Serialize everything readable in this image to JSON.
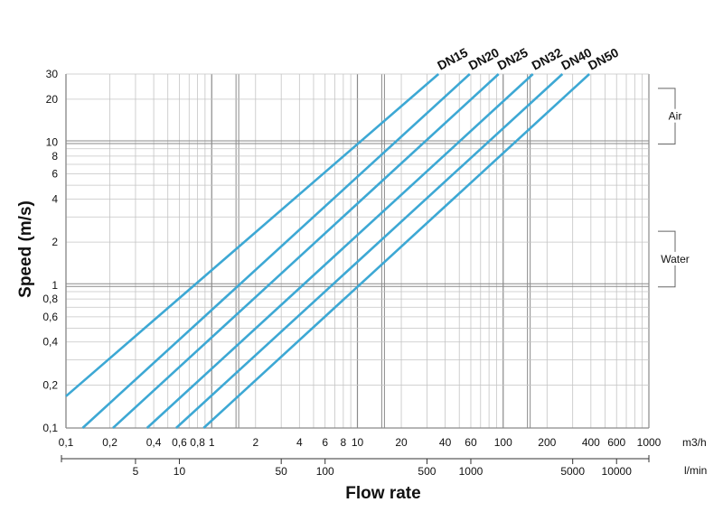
{
  "chart_data": {
    "type": "line",
    "title": "",
    "xlabel": "Flow rate",
    "ylabel": "Speed (m/s)",
    "x_scale": "log",
    "y_scale": "log",
    "grid": true,
    "xlim": [
      0.1,
      1000
    ],
    "ylim": [
      0.1,
      30
    ],
    "x_unit_primary": "m3/h",
    "x_unit_secondary": "l/min",
    "x_ticks_primary": [
      {
        "value": 0.1,
        "label": "0,1"
      },
      {
        "value": 0.2,
        "label": "0,2"
      },
      {
        "value": 0.4,
        "label": "0,4"
      },
      {
        "value": 0.6,
        "label": "0,6"
      },
      {
        "value": 0.8,
        "label": "0,8"
      },
      {
        "value": 1,
        "label": "1"
      },
      {
        "value": 2,
        "label": "2"
      },
      {
        "value": 4,
        "label": "4"
      },
      {
        "value": 6,
        "label": "6"
      },
      {
        "value": 8,
        "label": "8"
      },
      {
        "value": 10,
        "label": "10"
      },
      {
        "value": 20,
        "label": "20"
      },
      {
        "value": 40,
        "label": "40"
      },
      {
        "value": 60,
        "label": "60"
      },
      {
        "value": 100,
        "label": "100"
      },
      {
        "value": 200,
        "label": "200"
      },
      {
        "value": 400,
        "label": "400"
      },
      {
        "value": 600,
        "label": "600"
      },
      {
        "value": 1000,
        "label": "1000"
      }
    ],
    "x_ticks_secondary": [
      {
        "value": 5,
        "label": "5"
      },
      {
        "value": 10,
        "label": "10"
      },
      {
        "value": 50,
        "label": "50"
      },
      {
        "value": 100,
        "label": "100"
      },
      {
        "value": 500,
        "label": "500"
      },
      {
        "value": 1000,
        "label": "1000"
      },
      {
        "value": 5000,
        "label": "5000"
      },
      {
        "value": 10000,
        "label": "10000"
      }
    ],
    "y_ticks": [
      {
        "value": 0.1,
        "label": "0,1"
      },
      {
        "value": 0.2,
        "label": "0,2"
      },
      {
        "value": 0.4,
        "label": "0,4"
      },
      {
        "value": 0.6,
        "label": "0,6"
      },
      {
        "value": 0.8,
        "label": "0,8"
      },
      {
        "value": 1,
        "label": "1"
      },
      {
        "value": 2,
        "label": "2"
      },
      {
        "value": 4,
        "label": "4"
      },
      {
        "value": 6,
        "label": "6"
      },
      {
        "value": 8,
        "label": "8"
      },
      {
        "value": 10,
        "label": "10"
      },
      {
        "value": 20,
        "label": "20"
      },
      {
        "value": 30,
        "label": "30"
      }
    ],
    "ranges": [
      {
        "label": "Air",
        "from": 10,
        "to": 20
      },
      {
        "label": "Water",
        "from": 1,
        "to": 2
      }
    ],
    "series": [
      {
        "name": "DN15",
        "x": [
          0.1,
          36
        ],
        "y": [
          0.167,
          30
        ]
      },
      {
        "name": "DN20",
        "x": [
          0.13,
          59
        ],
        "y": [
          0.1,
          30
        ]
      },
      {
        "name": "DN25",
        "x": [
          0.21,
          93
        ],
        "y": [
          0.1,
          30
        ]
      },
      {
        "name": "DN32",
        "x": [
          0.36,
          160
        ],
        "y": [
          0.1,
          30
        ]
      },
      {
        "name": "DN40",
        "x": [
          0.57,
          255
        ],
        "y": [
          0.1,
          30
        ]
      },
      {
        "name": "DN50",
        "x": [
          0.88,
          390
        ],
        "y": [
          0.1,
          30
        ]
      }
    ],
    "line_color": "#3da8d4"
  }
}
